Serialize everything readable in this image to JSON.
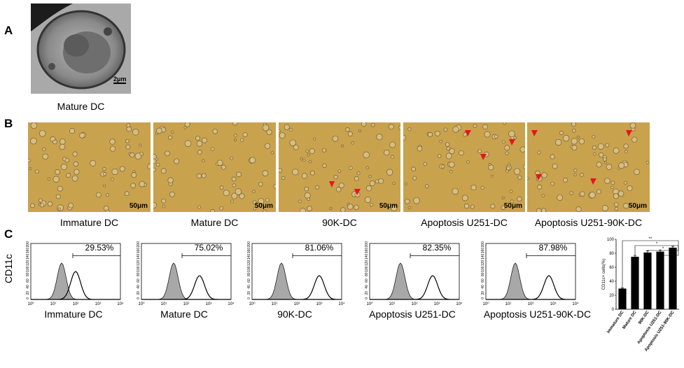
{
  "panels": {
    "a": {
      "letter": "A",
      "scale_bar": "2μm",
      "caption": "Mature DC"
    },
    "b": {
      "letter": "B",
      "scale_bar": "50μm",
      "images": [
        "Immature DC",
        "Mature DC",
        "90K-DC",
        "Apoptosis U251-DC",
        "Apoptosis U251-90K-DC"
      ],
      "arrowhead_color": "#e8141c"
    },
    "c": {
      "letter": "C",
      "ylabel": "CD11c",
      "histograms": [
        {
          "label": "Immature DC",
          "percent": "29.53%"
        },
        {
          "label": "Mature DC",
          "percent": "75.02%"
        },
        {
          "label": "90K-DC",
          "percent": "81.06%"
        },
        {
          "label": "Apoptosis U251-DC",
          "percent": "82.35%"
        },
        {
          "label": "Apoptosis U251-90K-DC",
          "percent": "87.98%"
        }
      ],
      "hist_yticks": [
        "0",
        "20",
        "40",
        "60",
        "80",
        "100",
        "120",
        "140",
        "160",
        "200"
      ],
      "hist_xticks": [
        "10⁰",
        "10¹",
        "10²",
        "10³",
        "10⁴"
      ]
    }
  },
  "chart_data": {
    "type": "bar",
    "categories": [
      "Immature DC",
      "Mature DC",
      "90K-DC",
      "Apoptosis U251-DC",
      "Apoptosis U251-90K-DC"
    ],
    "values": [
      29.53,
      75.02,
      81.06,
      82.35,
      87.98
    ],
    "errors": [
      1.0,
      2.0,
      2.5,
      2.0,
      2.0
    ],
    "ylabel": "CD11c+ cells(%)",
    "ylim": [
      0,
      100
    ],
    "yticks": [
      "0",
      "20",
      "40",
      "60",
      "80",
      "100"
    ],
    "significance": [
      "**",
      "*",
      "*",
      "*"
    ],
    "bar_color": "#000000"
  }
}
